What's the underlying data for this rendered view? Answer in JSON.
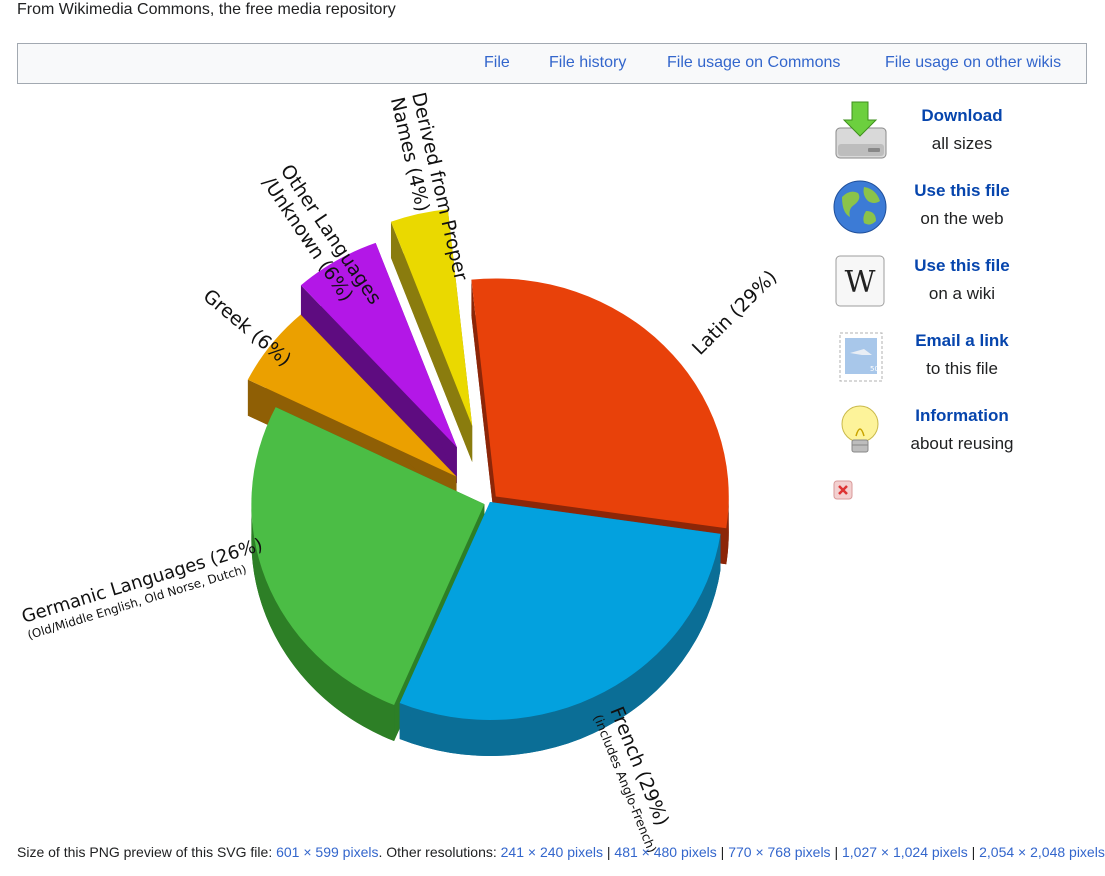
{
  "header": {
    "subtitle": "From Wikimedia Commons, the free media repository"
  },
  "tabs": [
    {
      "label": "File"
    },
    {
      "label": "File history"
    },
    {
      "label": "File usage on Commons"
    },
    {
      "label": "File usage on other wikis"
    }
  ],
  "sidebar": {
    "items": [
      {
        "title": "Download",
        "sub": "all sizes",
        "icon": "download-icon"
      },
      {
        "title": "Use this file",
        "sub": "on the web",
        "icon": "globe-icon"
      },
      {
        "title": "Use this file",
        "sub": "on a wiki",
        "icon": "wikipedia-icon"
      },
      {
        "title": "Email a link",
        "sub": "to this file",
        "icon": "email-stamp-icon"
      },
      {
        "title": "Information",
        "sub": "about reusing",
        "icon": "lightbulb-icon"
      }
    ],
    "close_icon": "close-icon"
  },
  "chart_data": {
    "type": "pie",
    "title": "",
    "slices": [
      {
        "label": "Latin (29%)",
        "value": 29,
        "color": "#e8410a",
        "side": "#8c2608"
      },
      {
        "label": "French (29%)",
        "sublabel": "(includes Anglo-French)",
        "value": 29,
        "color": "#03a1de",
        "side": "#0b6e96"
      },
      {
        "label": "Germanic Languages (26%)",
        "sublabel": "(Old/Middle English, Old Norse, Dutch)",
        "value": 26,
        "color": "#4bbd45",
        "side": "#2d7f26"
      },
      {
        "label": "Greek (6%)",
        "value": 6,
        "color": "#eba000",
        "side": "#8f5f05"
      },
      {
        "label": "Other Languages /Unknown (6%)",
        "label_lines": [
          "Other Languages",
          "/Unknown (6%)"
        ],
        "value": 6,
        "color": "#b317e7",
        "side": "#5e0c80"
      },
      {
        "label": "Derived from Proper Names (4%)",
        "label_lines": [
          "Derived from Proper",
          "Names (4%)"
        ],
        "value": 4,
        "color": "#ead900",
        "side": "#8a7c0e"
      }
    ]
  },
  "footer": {
    "prefix": "Size of this PNG preview of this SVG file: ",
    "preview": "601 × 599 pixels",
    "other": ". Other resolutions: ",
    "resolutions": [
      "241 × 240 pixels",
      "481 × 480 pixels",
      "770 × 768 pixels",
      "1,027 × 1,024 pixels",
      "2,054 × 2,048 pixels"
    ],
    "separator": " | "
  }
}
